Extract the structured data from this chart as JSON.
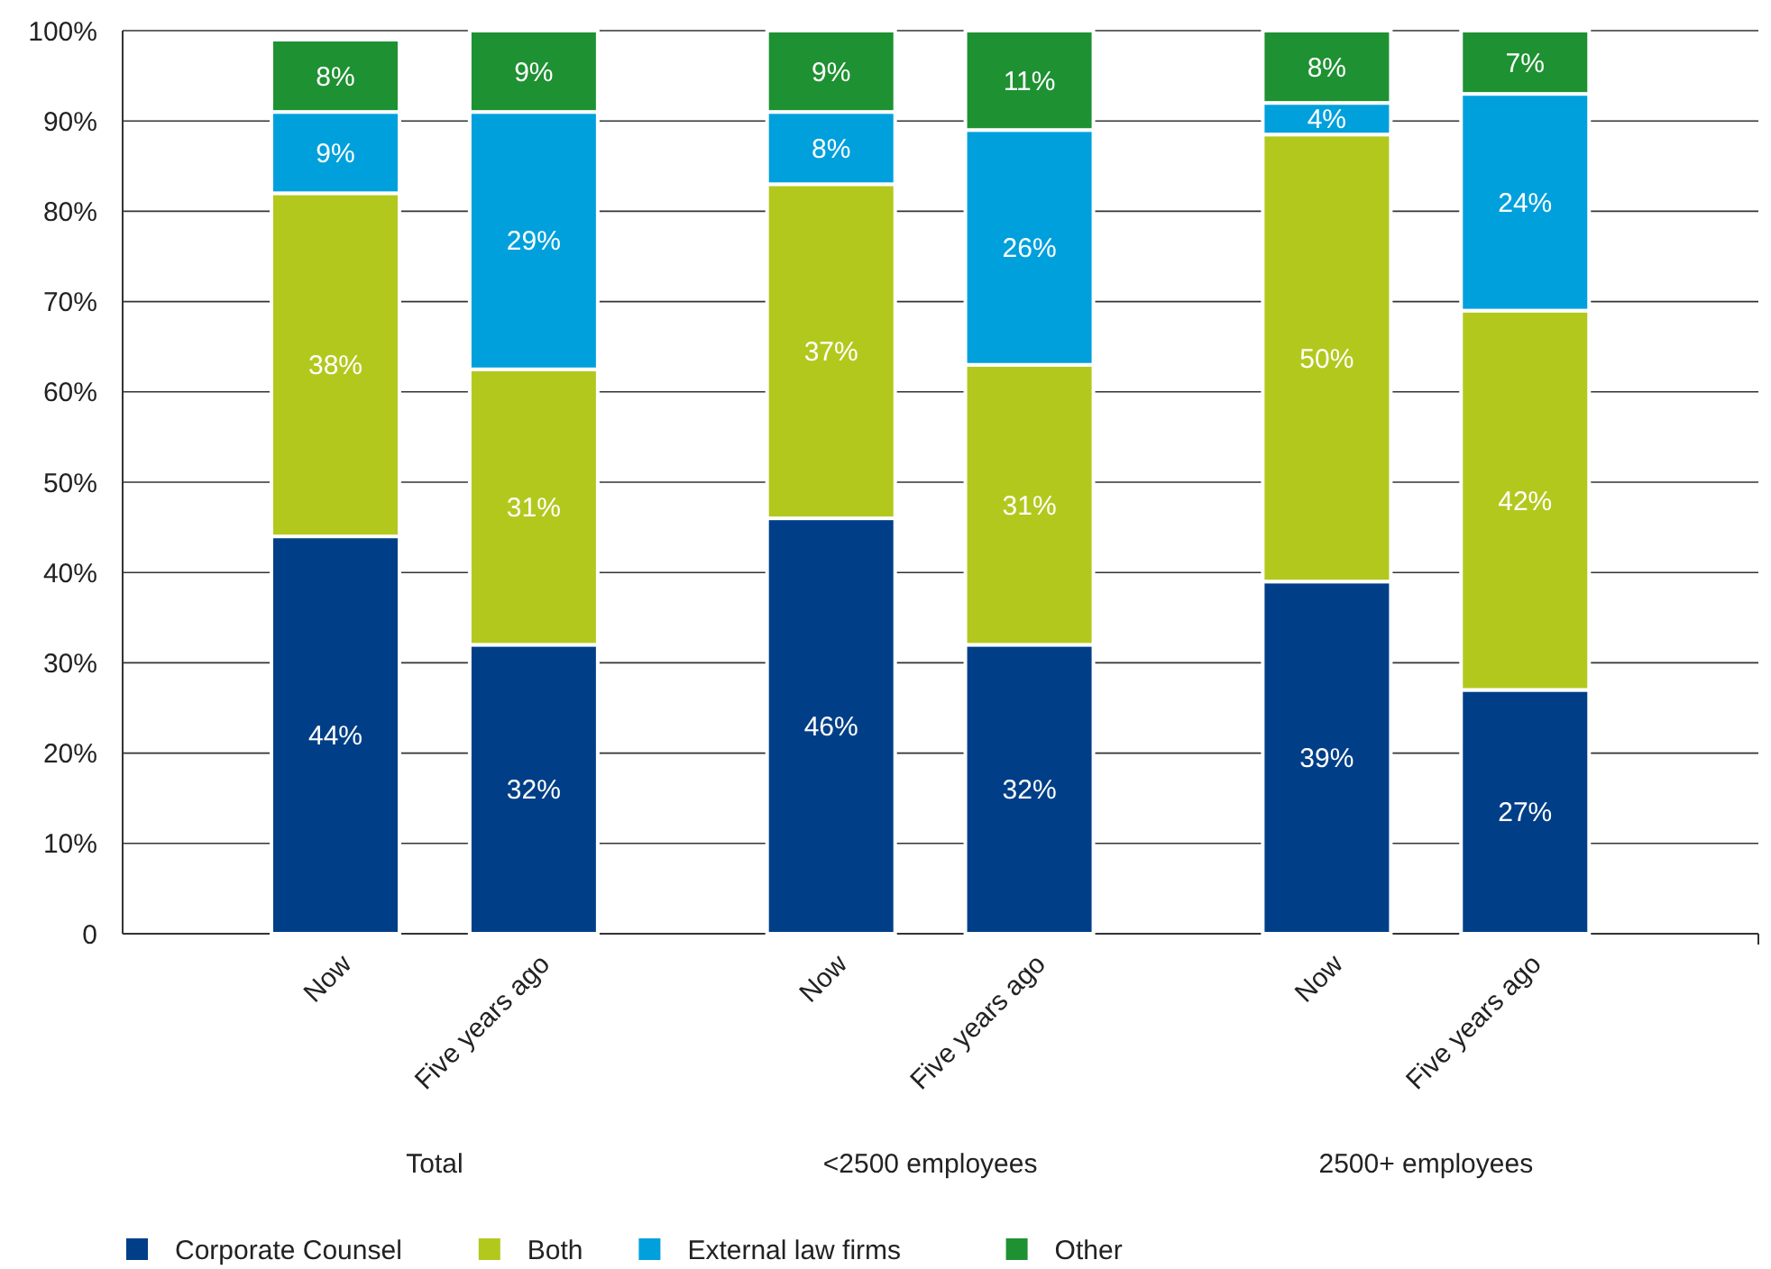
{
  "chart_data": {
    "type": "bar",
    "stacked": true,
    "categories": [
      "Now",
      "Five years ago",
      "Now",
      "Five years ago",
      "Now",
      "Five years ago"
    ],
    "annotations": [
      "Total",
      "<2500 employees",
      "2500+ employees"
    ],
    "series": [
      {
        "name": "Corporate Counsel",
        "color": "#003f87",
        "values": [
          44,
          32,
          46,
          32,
          39,
          27
        ],
        "value_labels": [
          "44%",
          "32%",
          "46%",
          "32%",
          "39%",
          "27%"
        ]
      },
      {
        "name": "Both",
        "color": "#b3c81d",
        "values": [
          38,
          30.5,
          37,
          31,
          49.5,
          42
        ],
        "value_labels": [
          "38%",
          "31%",
          "37%",
          "31%",
          "50%",
          "42%"
        ]
      },
      {
        "name": "External law firms",
        "color": "#00a0dc",
        "values": [
          9,
          28.5,
          8,
          26,
          3.5,
          24
        ],
        "value_labels": [
          "9%",
          "29%",
          "8%",
          "26%",
          "4%",
          "24%"
        ]
      },
      {
        "name": "Other",
        "color": "#1e9132",
        "values": [
          8,
          9,
          9,
          11,
          8,
          7
        ],
        "value_labels": [
          "8%",
          "9%",
          "9%",
          "11%",
          "8%",
          "7%"
        ]
      }
    ],
    "ylim": [
      0,
      100
    ],
    "yticks": [
      0,
      {
        "value": 10,
        "label": "10%"
      },
      {
        "value": 20,
        "label": "20%"
      },
      {
        "value": 30,
        "label": "30%"
      },
      {
        "value": 40,
        "label": "40%"
      },
      {
        "value": 50,
        "label": "50%"
      },
      {
        "value": 60,
        "label": "60%"
      },
      {
        "value": 70,
        "label": "70%"
      },
      {
        "value": 80,
        "label": "80%"
      },
      {
        "value": 90,
        "label": "90%"
      },
      {
        "value": 100,
        "label": "100%"
      }
    ],
    "grid": "y",
    "legend": "bottom"
  }
}
